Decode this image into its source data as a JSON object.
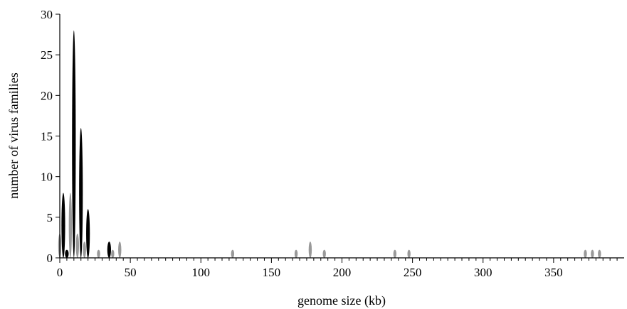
{
  "chart_data": {
    "type": "bar",
    "xlabel": "genome size (kb)",
    "ylabel": "number of virus families",
    "xlim": [
      0,
      400
    ],
    "ylim": [
      0,
      30
    ],
    "x_ticks": [
      0,
      50,
      100,
      150,
      200,
      250,
      300,
      350
    ],
    "y_ticks": [
      0,
      5,
      10,
      15,
      20,
      25,
      30
    ],
    "x_minor_step": 5,
    "grid": false,
    "colors": {
      "black": "#000000",
      "grey": "#999999"
    },
    "series": [
      {
        "color": "black",
        "x": [
          2.5,
          5,
          10,
          15,
          20,
          35
        ],
        "values": [
          8,
          1,
          28,
          16,
          6,
          2
        ]
      },
      {
        "color": "grey",
        "x": [
          0,
          7.5,
          12.5,
          17.5,
          27.5,
          37.5,
          42.5,
          122.5,
          167.5,
          177.5,
          187.5,
          237.5,
          247.5,
          372.5,
          377.5,
          382.5
        ],
        "values": [
          3,
          8,
          3,
          2,
          1,
          1,
          2,
          1,
          1,
          2,
          1,
          1,
          1,
          1,
          1,
          1
        ]
      }
    ]
  }
}
